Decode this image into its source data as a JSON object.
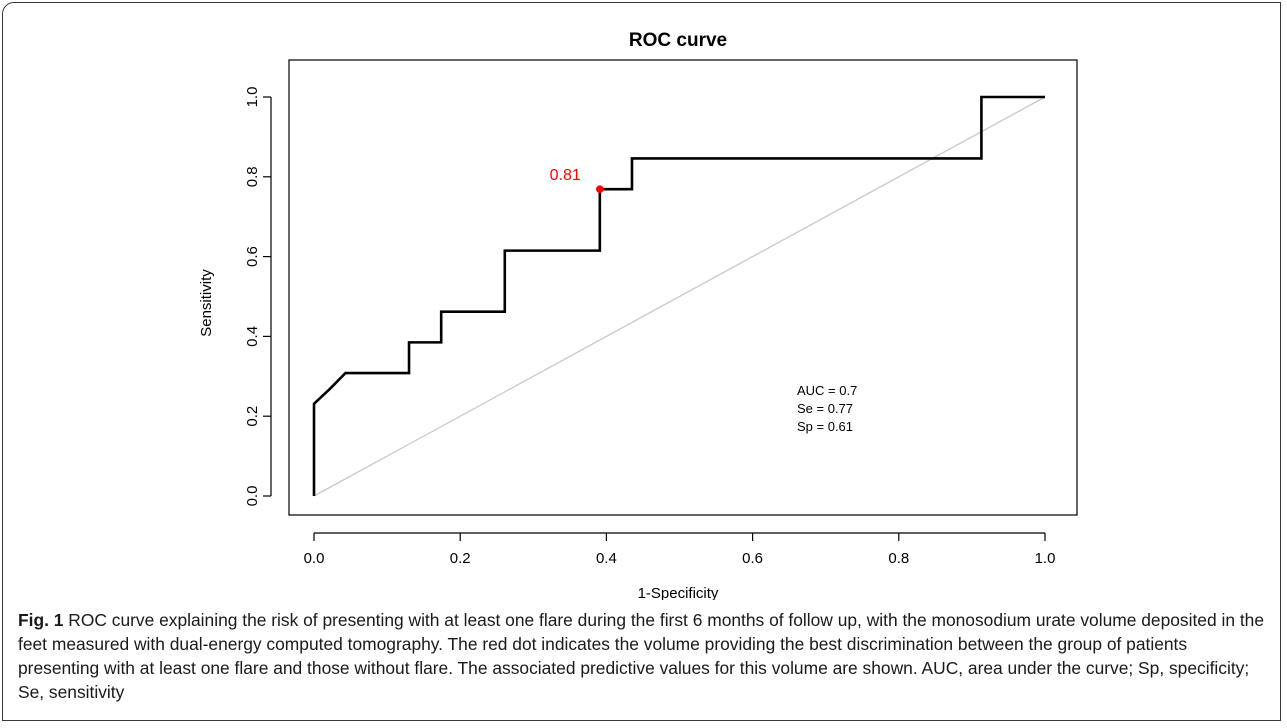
{
  "chart_data": {
    "type": "line",
    "title": "ROC curve",
    "xlabel": "1-Specificity",
    "ylabel": "Sensitivity",
    "xlim": [
      0,
      1
    ],
    "ylim": [
      0,
      1
    ],
    "x_ticks": [
      "0.0",
      "0.2",
      "0.4",
      "0.6",
      "0.8",
      "1.0"
    ],
    "y_ticks": [
      "0.0",
      "0.2",
      "0.4",
      "0.6",
      "0.8",
      "1.0"
    ],
    "grid": false,
    "series": [
      {
        "color": "#000000",
        "x": [
          0,
          0,
          0.022,
          0.043,
          0.13,
          0.13,
          0.174,
          0.174,
          0.261,
          0.261,
          0.391,
          0.391,
          0.435,
          0.435,
          0.913,
          0.913,
          1.0
        ],
        "y": [
          0,
          0.231,
          0.269,
          0.308,
          0.308,
          0.385,
          0.385,
          0.462,
          0.462,
          0.615,
          0.615,
          0.769,
          0.769,
          0.846,
          0.846,
          1.0,
          1.0
        ]
      },
      {
        "color": "#c8c8c8",
        "x": [
          0,
          1
        ],
        "y": [
          0,
          1
        ]
      }
    ],
    "highlight_point": {
      "x": 0.391,
      "y": 0.769,
      "label": "0.81",
      "color": "#ff0000"
    },
    "annotations": [
      "AUC = 0.7",
      "Se = 0.77",
      "Sp = 0.61"
    ]
  },
  "caption": {
    "label": "Fig. 1",
    "text": "ROC curve explaining the risk of presenting with at least one flare during the first 6 months of follow up, with the monosodium urate volume deposited in the feet measured with dual-energy computed tomography. The red dot indicates the volume providing the best discrimination between the group of patients presenting with at least one flare and those without flare. The associated predictive values for this volume are shown. AUC, area under the curve; Sp, specificity; Se, sensitivity"
  }
}
